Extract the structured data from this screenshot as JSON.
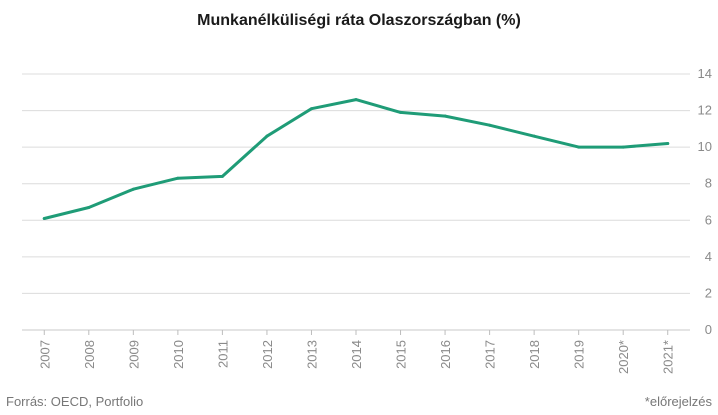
{
  "chart_data": {
    "type": "line",
    "title": "Munkanélküliségi ráta Olaszországban (%)",
    "xlabel": "",
    "ylabel": "",
    "categories": [
      "2007",
      "2008",
      "2009",
      "2010",
      "2011",
      "2012",
      "2013",
      "2014",
      "2015",
      "2016",
      "2017",
      "2018",
      "2019",
      "2020*",
      "2021*"
    ],
    "series": [
      {
        "values": [
          6.1,
          6.7,
          7.7,
          8.3,
          8.4,
          10.6,
          12.1,
          12.6,
          11.9,
          11.7,
          11.2,
          10.6,
          10.0,
          10.0,
          10.2
        ]
      }
    ],
    "ylim": [
      0,
      14
    ],
    "yticks": [
      0,
      2,
      4,
      6,
      8,
      10,
      12,
      14
    ],
    "y_axis_position": "right",
    "grid": true,
    "line_color": "#1f9c77",
    "grid_color": "#dcdcdc"
  },
  "footer": {
    "source": "Forrás: OECD, Portfolio",
    "note": "*előrejelzés"
  }
}
